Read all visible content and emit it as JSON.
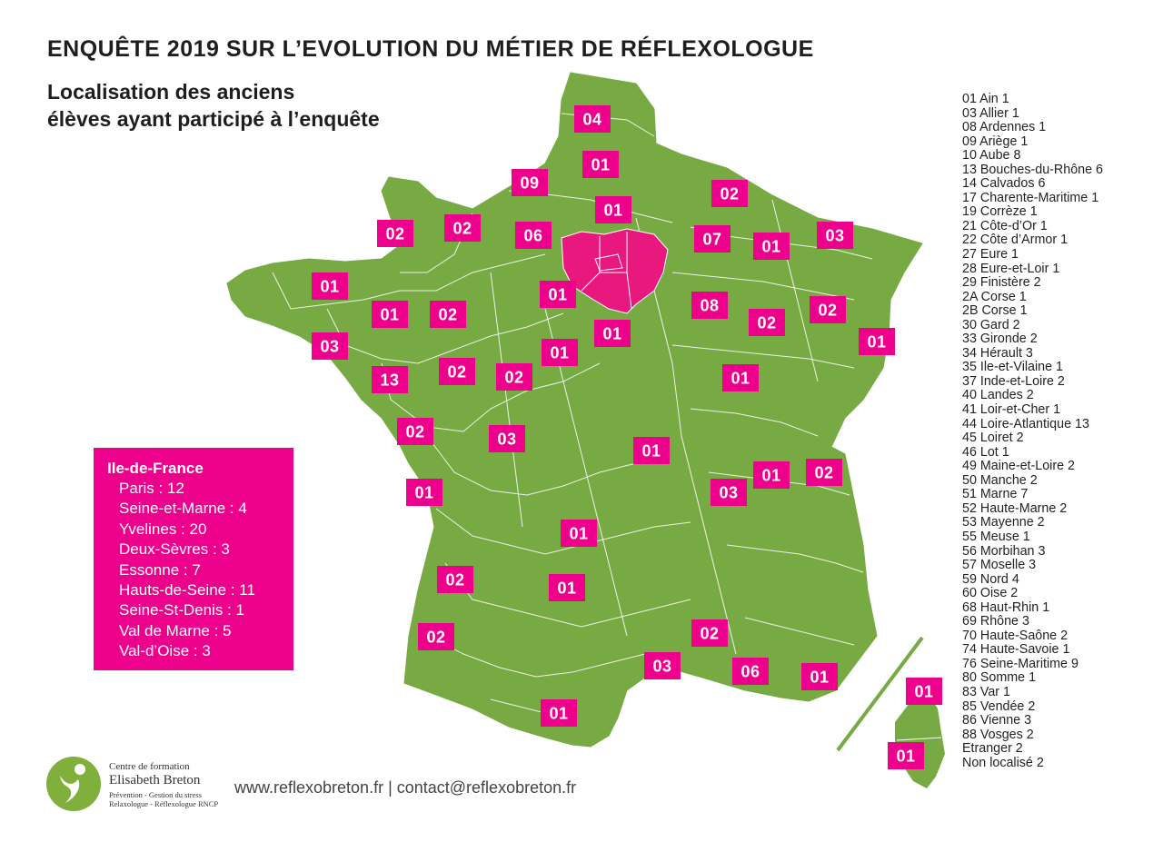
{
  "header": {
    "title": "ENQUÊTE 2019 SUR L’EVOLUTION DU MÉTIER DE RÉFLEXOLOGUE",
    "subtitle_line1": "Localisation des anciens",
    "subtitle_line2": "élèves ayant participé à l’enquête"
  },
  "colors": {
    "land": "#78aa43",
    "border": "#ffffff",
    "highlight": "#e8187f",
    "badge": "#ec008c"
  },
  "map": {
    "badges": [
      "04",
      "01",
      "09",
      "02",
      "02",
      "06",
      "01",
      "01",
      "07",
      "01",
      "03",
      "02",
      "01",
      "01",
      "02",
      "01",
      "08",
      "02",
      "02",
      "03",
      "02",
      "01",
      "01",
      "13",
      "02",
      "02",
      "01",
      "03",
      "01",
      "01",
      "02",
      "01",
      "03",
      "01",
      "01",
      "02",
      "01",
      "02",
      "02",
      "03",
      "06",
      "01",
      "01",
      "01"
    ]
  },
  "legend": [
    "01 Ain 1",
    "03 Allier 1",
    "08 Ardennes 1",
    "09 Ariège 1",
    "10 Aube 8",
    "13 Bouches-du-Rhône 6",
    "14 Calvados 6",
    "17 Charente-Maritime 1",
    "19 Corrèze 1",
    "21 Côte-d’Or 1",
    "22 Côte d’Armor 1",
    "27 Eure 1",
    "28 Eure-et-Loir 1",
    "29 Finistère 2",
    "2A Corse 1",
    "2B Corse 1",
    "30 Gard 2",
    "33 Gironde 2",
    "34 Hérault 3",
    "35 Ile-et-Vilaine 1",
    "37 Inde-et-Loire 2",
    "40 Landes 2",
    "41 Loir-et-Cher 1",
    "44 Loire-Atlantique 13",
    "45 Loiret 2",
    "46 Lot 1",
    "49 Maine-et-Loire 2",
    "50 Manche 2",
    "51 Marne 7",
    "52 Haute-Marne 2",
    "53 Mayenne 2",
    "55 Meuse 1",
    "56 Morbihan 3",
    "57 Moselle 3",
    "59 Nord 4",
    "60 Oise 2",
    "68 Haut-Rhin 1",
    "69 Rhône 3",
    "70 Haute-Saône 2",
    "74 Haute-Savoie 1",
    "76 Seine-Maritime 9",
    "80 Somme 1",
    "83 Var 1",
    "85 Vendée 2",
    "86 Vienne 3",
    "88 Vosges 2",
    "Etranger 2",
    "Non localisé 2"
  ],
  "idf": {
    "title": "Ile-de-France",
    "items": [
      "Paris : 12",
      "Seine-et-Marne : 4",
      "Yvelines : 20",
      "Deux-Sèvres : 3",
      "Essonne : 7",
      "Hauts-de-Seine : 11",
      "Seine-St-Denis : 1",
      "Val de Marne : 5",
      "Val-d’Oise : 3"
    ]
  },
  "branding": {
    "line1": "Centre de formation",
    "line2": "Elisabeth Breton",
    "line3": "Prévention - Gestion du stress",
    "line4": "Relaxologue - Réflexologue RNCP"
  },
  "footer": {
    "contact": "www.reflexobreton.fr | contact@reflexobreton.fr"
  }
}
